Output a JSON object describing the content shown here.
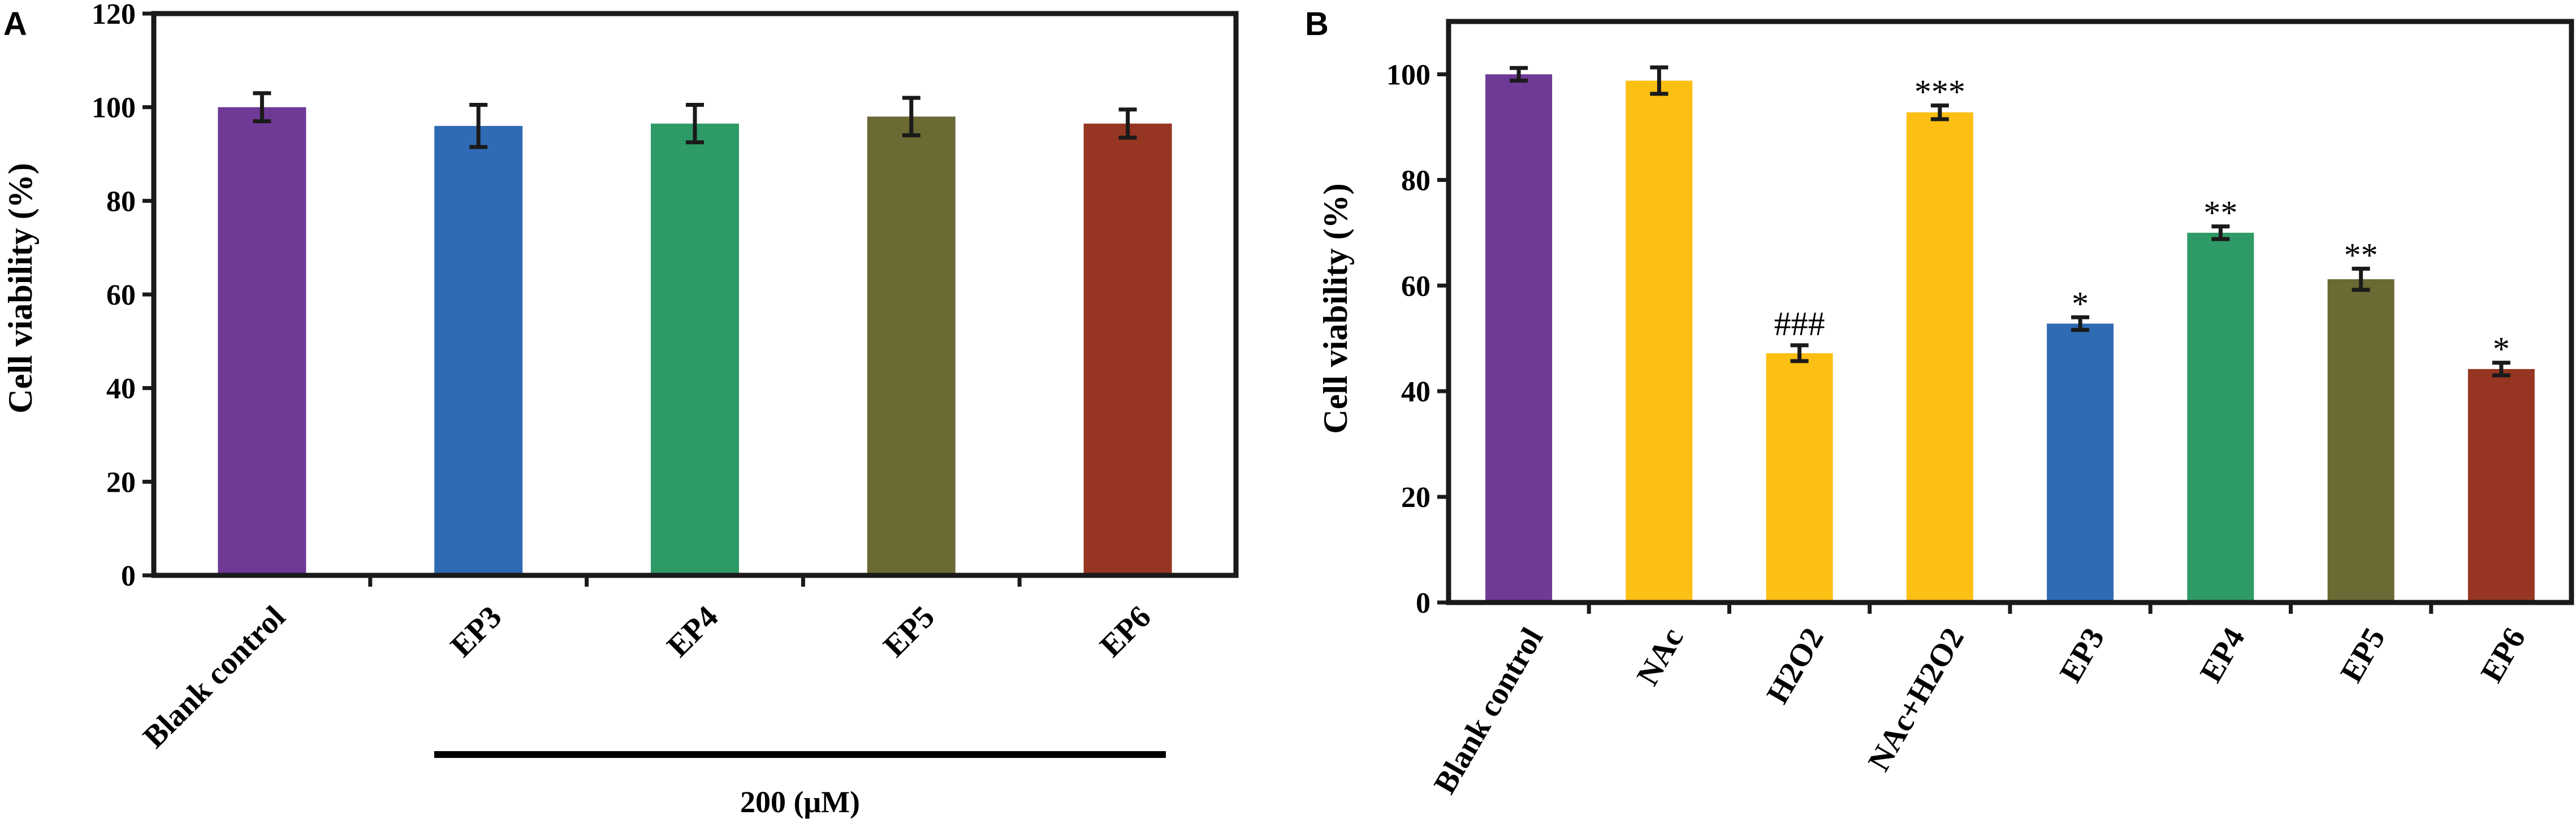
{
  "chart_data": [
    {
      "panel": "A",
      "type": "bar",
      "title": "",
      "xlabel": "",
      "ylabel": "Cell viability (%)",
      "ylim": [
        0,
        120
      ],
      "yticks": [
        0,
        20,
        40,
        60,
        80,
        100,
        120
      ],
      "grid": false,
      "categories": [
        "Blank control",
        "EP3",
        "EP4",
        "EP5",
        "EP6"
      ],
      "values": [
        100,
        96,
        96.5,
        98,
        96.5
      ],
      "errors": [
        3,
        4.5,
        4,
        4,
        3
      ],
      "colors": [
        "#6F3996",
        "#2F6AB4",
        "#2E9A66",
        "#6B6934",
        "#963622"
      ],
      "group_label": "200 (μM)"
    },
    {
      "panel": "B",
      "type": "bar",
      "title": "",
      "xlabel": "",
      "ylabel": "Cell viability (%)",
      "ylim": [
        0,
        110
      ],
      "yticks": [
        0,
        20,
        40,
        60,
        80,
        100
      ],
      "grid": false,
      "categories": [
        "Blank control",
        "NAc",
        "H2O2",
        "NAc+H2O2",
        "EP3",
        "EP4",
        "EP5",
        "EP6"
      ],
      "values": [
        100,
        98.8,
        47.2,
        92.8,
        52.8,
        70,
        61.2,
        44.2
      ],
      "errors": [
        1.2,
        2.5,
        1.5,
        1.3,
        1.2,
        1.2,
        2,
        1.2
      ],
      "colors": [
        "#6F3996",
        "#FCBF14",
        "#FCBF14",
        "#FCBF14",
        "#2F6AB4",
        "#2E9A66",
        "#6B6934",
        "#963622"
      ],
      "annotations": [
        "",
        "",
        "###",
        "***",
        "*",
        "**",
        "**",
        "*"
      ]
    }
  ]
}
